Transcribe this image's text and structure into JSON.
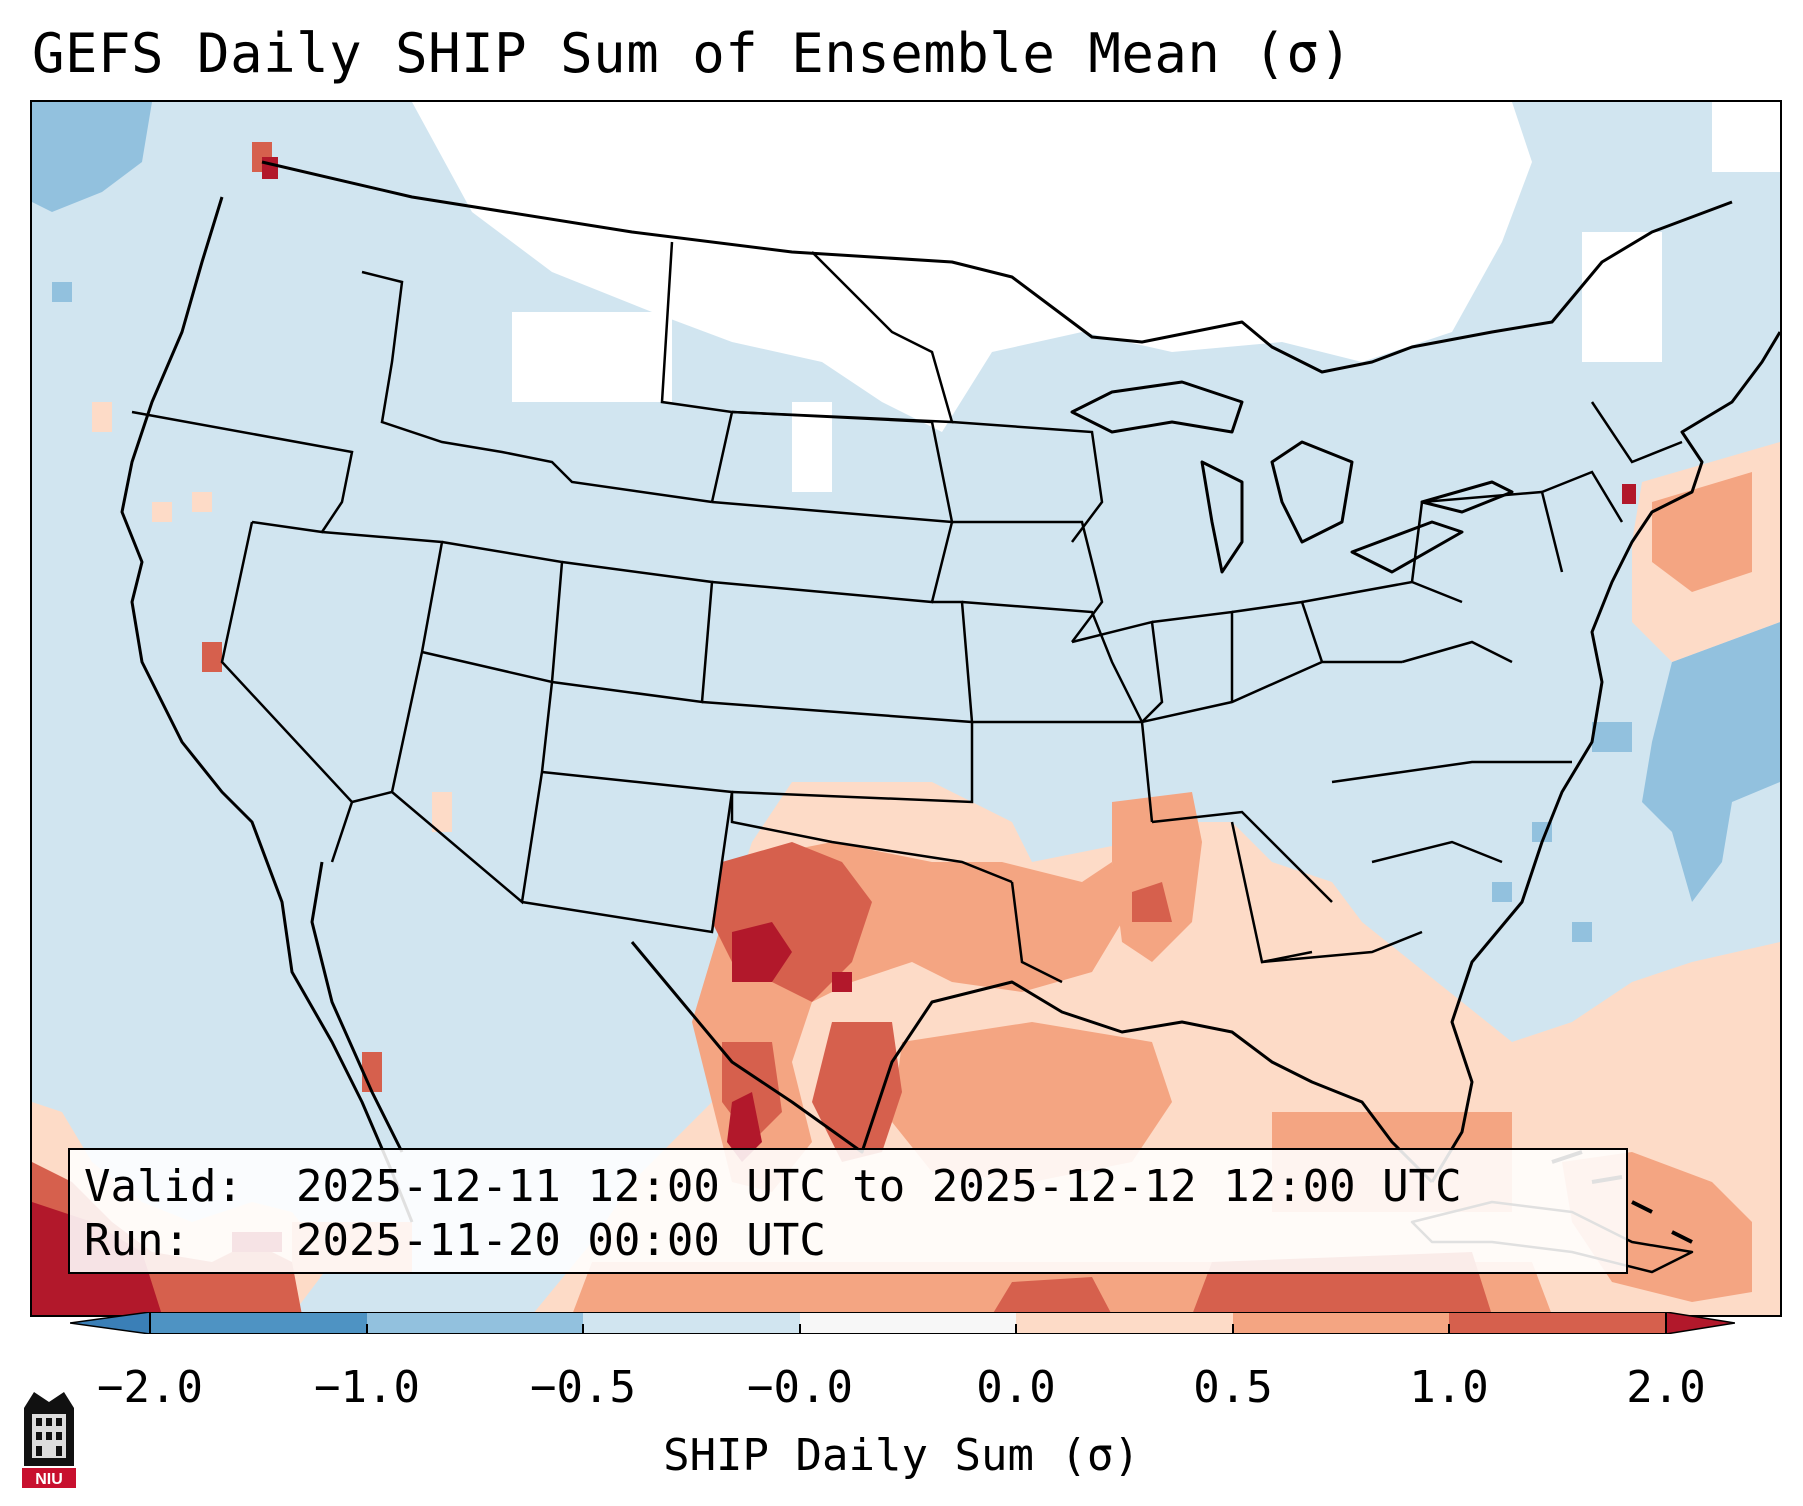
{
  "title": "GEFS Daily SHIP Sum of Ensemble Mean (σ)",
  "info": {
    "valid_key": "Valid:",
    "valid_value": "2025-12-11 12:00 UTC to 2025-12-12 12:00 UTC",
    "run_key": "Run:",
    "run_value": "2025-11-20 00:00 UTC"
  },
  "colorbar": {
    "label": "SHIP Daily Sum (σ)",
    "ticks": [
      "−2.0",
      "−1.0",
      "−0.5",
      "−0.0",
      "0.0",
      "0.5",
      "1.0",
      "2.0"
    ],
    "colors": {
      "under": "#3a7fb7",
      "neg_2_1": "#4e93c3",
      "neg_1_05": "#92c1de",
      "neg_05_0": "#d1e5f0",
      "zero_band": "#f7f7f7",
      "pos_0_05": "#fddbc7",
      "pos_05_1": "#f4a582",
      "pos_1_2": "#d6604d",
      "over": "#b2182b"
    }
  },
  "logo": {
    "text": "NIU"
  }
}
